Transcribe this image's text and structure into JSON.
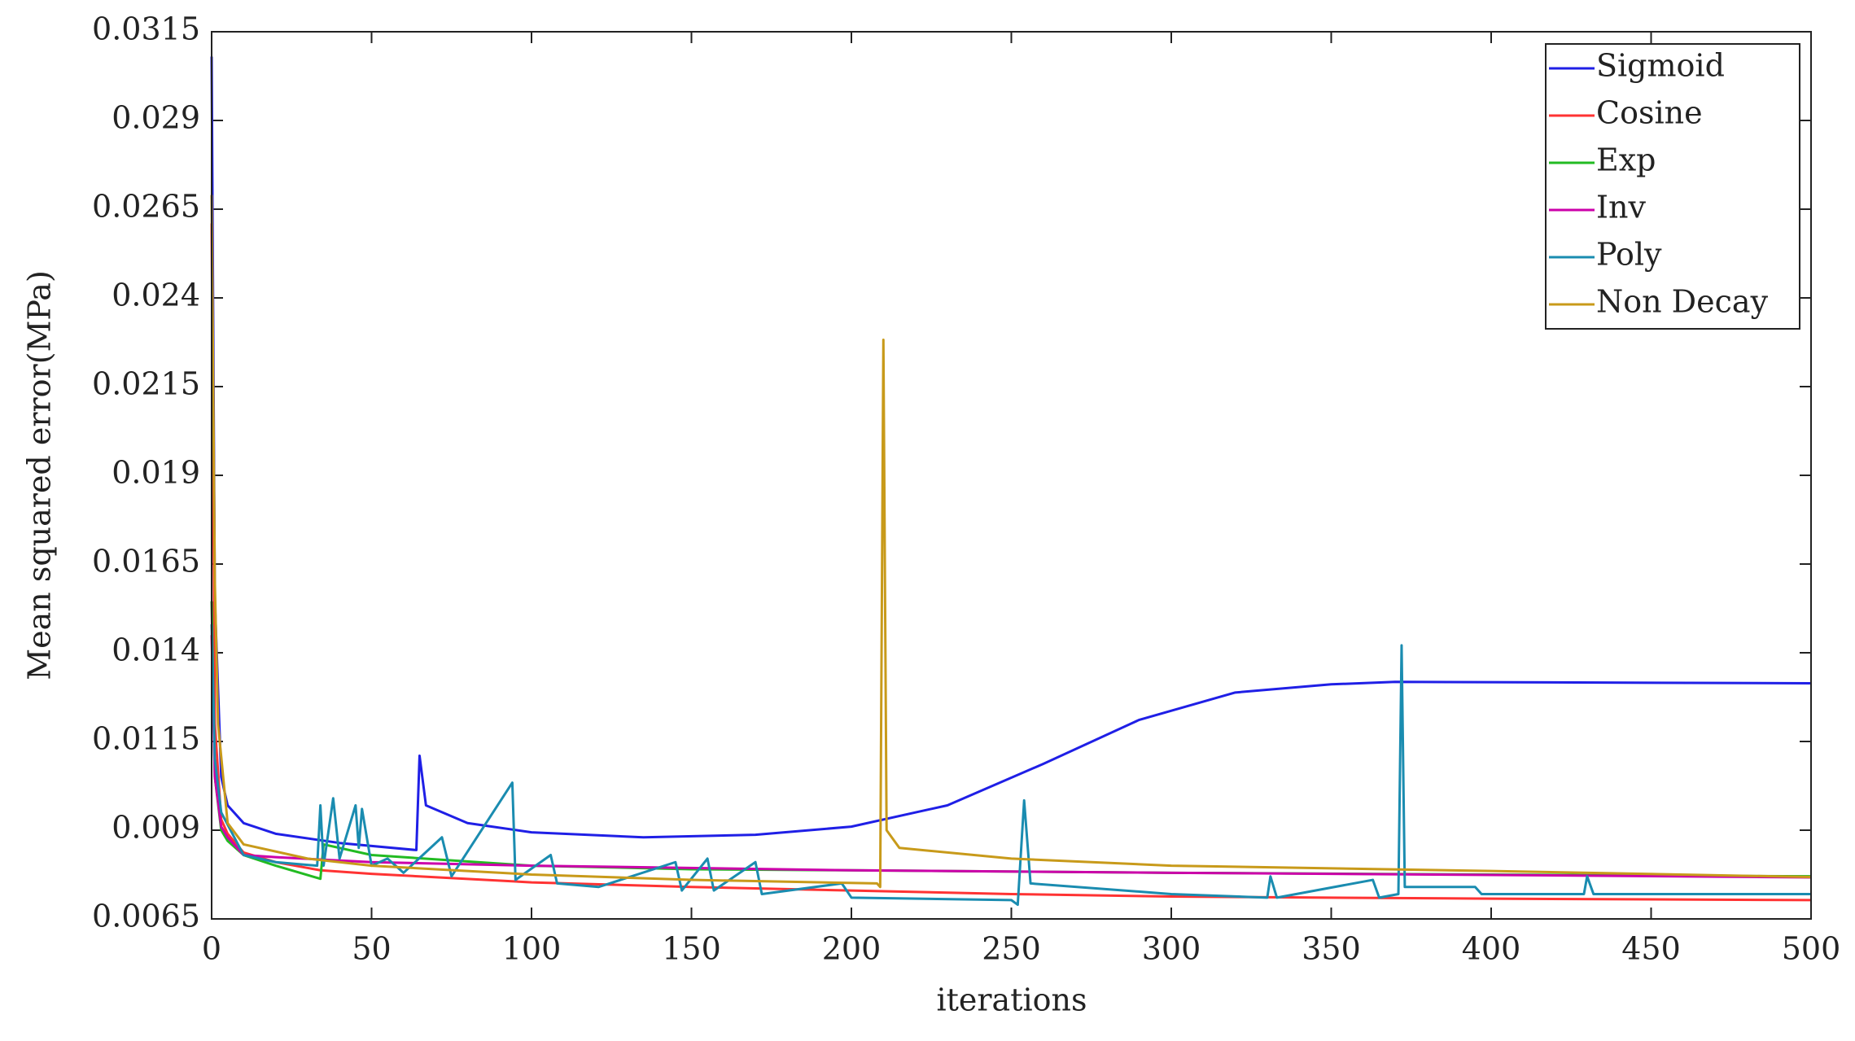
{
  "chart_data": {
    "type": "line",
    "xlabel": "iterations",
    "ylabel": "Mean squared error(MPa)",
    "xlim": [
      0,
      500
    ],
    "xticks": [
      0,
      50,
      100,
      150,
      200,
      250,
      300,
      350,
      400,
      450,
      500
    ],
    "ylim": [
      0.0065,
      0.0315
    ],
    "yticks": [
      0.0065,
      0.009,
      0.0115,
      0.014,
      0.0165,
      0.019,
      0.0215,
      0.024,
      0.0265,
      0.029,
      0.0315
    ],
    "grid": false,
    "legend": "upper right",
    "series": [
      {
        "name": "Sigmoid",
        "color": "#1f1fe6",
        "x": [
          0,
          1,
          3,
          5,
          10,
          20,
          40,
          64,
          65,
          67,
          80,
          100,
          135,
          170,
          200,
          230,
          260,
          290,
          320,
          350,
          370,
          500
        ],
        "values": [
          0.0308,
          0.0155,
          0.0105,
          0.0097,
          0.0092,
          0.0089,
          0.00864,
          0.00844,
          0.0111,
          0.0097,
          0.0092,
          0.00894,
          0.0088,
          0.00887,
          0.0091,
          0.0097,
          0.01087,
          0.01211,
          0.01288,
          0.01311,
          0.01318,
          0.01314
        ]
      },
      {
        "name": "Cosine",
        "color": "#ff3333",
        "x": [
          0,
          1,
          3,
          5,
          10,
          20,
          34,
          50,
          100,
          150,
          200,
          250,
          300,
          400,
          500
        ],
        "values": [
          0.0261,
          0.012,
          0.0093,
          0.0089,
          0.00837,
          0.0081,
          0.00787,
          0.00777,
          0.00753,
          0.0074,
          0.0073,
          0.0072,
          0.00713,
          0.00707,
          0.00703
        ]
      },
      {
        "name": "Exp",
        "color": "#22bb22",
        "x": [
          0,
          1,
          3,
          5,
          10,
          20,
          34,
          35,
          50,
          100,
          150,
          200,
          300,
          400,
          500
        ],
        "values": [
          0.01545,
          0.0105,
          0.009,
          0.0087,
          0.0083,
          0.008,
          0.00763,
          0.0086,
          0.0083,
          0.008,
          0.0079,
          0.00787,
          0.0078,
          0.00775,
          0.0077
        ]
      },
      {
        "name": "Inv",
        "color": "#cc00aa",
        "x": [
          0,
          1,
          3,
          5,
          10,
          20,
          50,
          100,
          200,
          300,
          400,
          500
        ],
        "values": [
          0.0145,
          0.0105,
          0.0091,
          0.0088,
          0.0083,
          0.00824,
          0.0081,
          0.008,
          0.00787,
          0.0078,
          0.00774,
          0.00767
        ]
      },
      {
        "name": "Poly",
        "color": "#1a8cb0",
        "x": [
          0,
          1,
          3,
          10,
          20,
          33,
          34,
          35,
          38,
          40,
          45,
          46,
          47,
          50,
          55,
          60,
          72,
          75,
          94,
          95,
          106,
          108,
          121,
          145,
          147,
          155,
          157,
          170,
          172,
          197,
          200,
          250,
          252,
          254,
          256,
          300,
          330,
          331,
          333,
          363,
          365,
          371,
          372,
          373,
          395,
          397,
          429,
          430,
          432,
          500
        ],
        "values": [
          0.0148,
          0.011,
          0.0095,
          0.0083,
          0.0081,
          0.008,
          0.0097,
          0.008,
          0.0099,
          0.0082,
          0.0097,
          0.0085,
          0.0096,
          0.008,
          0.0082,
          0.0078,
          0.0088,
          0.0077,
          0.01034,
          0.0076,
          0.0083,
          0.0075,
          0.0074,
          0.0081,
          0.0073,
          0.0082,
          0.0073,
          0.0081,
          0.0072,
          0.0075,
          0.0071,
          0.00703,
          0.0069,
          0.00984,
          0.0075,
          0.0072,
          0.0071,
          0.0077,
          0.0071,
          0.0076,
          0.0071,
          0.0072,
          0.01421,
          0.0074,
          0.0074,
          0.0072,
          0.0072,
          0.0077,
          0.0072,
          0.0072
        ]
      },
      {
        "name": "Non Decay",
        "color": "#c89a1a",
        "x": [
          0,
          1,
          2,
          5,
          10,
          30,
          50,
          100,
          150,
          208,
          209,
          210,
          211,
          215,
          250,
          300,
          400,
          500
        ],
        "values": [
          0.0269,
          0.016,
          0.012,
          0.0092,
          0.0086,
          0.0082,
          0.008,
          0.00775,
          0.0076,
          0.0075,
          0.0074,
          0.02282,
          0.009,
          0.0085,
          0.0082,
          0.008,
          0.00785,
          0.00768
        ]
      }
    ]
  }
}
